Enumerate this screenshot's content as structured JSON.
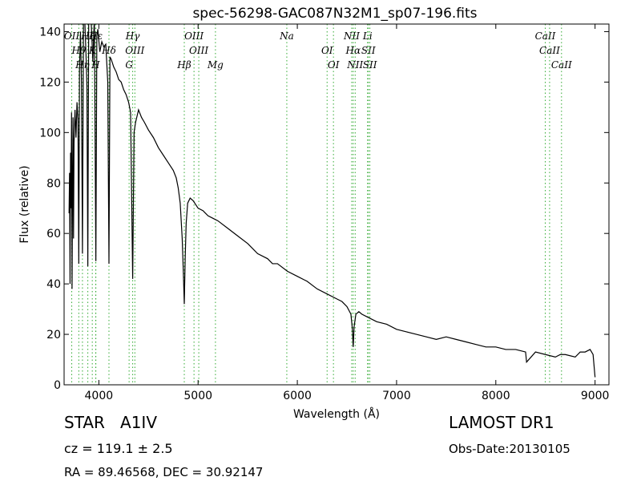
{
  "chart_data": {
    "type": "line",
    "title": "spec-56298-GAC087N32M1_sp07-196.fits",
    "x_label": "Wavelength (Å)",
    "y_label": "Flux (relative)",
    "xlim": [
      3650,
      9140
    ],
    "ylim": [
      0,
      143
    ],
    "xticks": [
      4000,
      5000,
      6000,
      7000,
      8000,
      9000
    ],
    "yticks": [
      0,
      20,
      40,
      60,
      80,
      100,
      120,
      140
    ],
    "line_color": "#000000",
    "marker_color": "#33aa33",
    "x": [
      3700,
      3705,
      3710,
      3715,
      3720,
      3725,
      3730,
      3735,
      3740,
      3745,
      3750,
      3760,
      3770,
      3780,
      3790,
      3798,
      3805,
      3815,
      3825,
      3835,
      3845,
      3855,
      3870,
      3880,
      3889,
      3898,
      3910,
      3925,
      3940,
      3955,
      3970,
      3980,
      3990,
      4010,
      4030,
      4050,
      4070,
      4090,
      4102,
      4112,
      4125,
      4150,
      4175,
      4200,
      4225,
      4250,
      4275,
      4300,
      4320,
      4341,
      4355,
      4370,
      4400,
      4430,
      4460,
      4500,
      4550,
      4600,
      4650,
      4700,
      4750,
      4780,
      4800,
      4820,
      4840,
      4852,
      4861,
      4870,
      4880,
      4895,
      4920,
      4950,
      5000,
      5050,
      5100,
      5150,
      5200,
      5300,
      5400,
      5500,
      5600,
      5700,
      5750,
      5800,
      5900,
      6000,
      6100,
      6200,
      6300,
      6400,
      6450,
      6500,
      6540,
      6555,
      6563,
      6572,
      6590,
      6620,
      6650,
      6700,
      6800,
      6900,
      7000,
      7100,
      7200,
      7300,
      7400,
      7500,
      7600,
      7700,
      7800,
      7900,
      8000,
      8100,
      8200,
      8300,
      8310,
      8400,
      8500,
      8600,
      8650,
      8700,
      8800,
      8850,
      8900,
      8950,
      8980,
      9000
    ],
    "values": [
      68,
      84,
      40,
      92,
      70,
      108,
      38,
      80,
      106,
      58,
      96,
      109,
      98,
      112,
      105,
      48,
      125,
      140,
      120,
      52,
      143,
      148,
      132,
      118,
      47,
      146,
      150,
      142,
      128,
      146,
      49,
      138,
      141,
      132,
      136,
      134,
      135,
      120,
      48,
      130,
      129,
      126,
      124,
      121,
      120,
      117,
      115,
      112,
      108,
      42,
      100,
      104,
      109,
      106,
      104,
      101,
      98,
      94,
      91,
      88,
      85,
      82,
      78,
      72,
      58,
      44,
      32,
      50,
      64,
      72,
      74,
      73,
      70,
      69,
      67,
      66,
      65,
      62,
      59,
      56,
      52,
      50,
      48,
      48,
      45,
      43,
      41,
      38,
      36,
      34,
      33,
      31,
      28,
      22,
      15,
      23,
      28,
      29,
      28,
      27,
      25,
      24,
      22,
      21,
      20,
      19,
      18,
      19,
      18,
      17,
      16,
      15,
      15,
      14,
      14,
      13,
      9,
      13,
      12,
      11,
      12,
      12,
      11,
      13,
      13,
      14,
      12,
      3
    ],
    "lines": [
      {
        "label": "OII",
        "wavelength": 3727
      },
      {
        "label": "Hθ",
        "wavelength": 3798
      },
      {
        "label": "Hη",
        "wavelength": 3835
      },
      {
        "label": "Hζ",
        "wavelength": 3889
      },
      {
        "label": "K",
        "wavelength": 3934
      },
      {
        "label": "H",
        "wavelength": 3968
      },
      {
        "label": "Hε",
        "wavelength": 3970
      },
      {
        "label": "Hδ",
        "wavelength": 4102
      },
      {
        "label": "G",
        "wavelength": 4305
      },
      {
        "label": "Hγ",
        "wavelength": 4341
      },
      {
        "label": "OIII",
        "wavelength": 4363
      },
      {
        "label": "Hβ",
        "wavelength": 4861
      },
      {
        "label": "OIII",
        "wavelength": 4959
      },
      {
        "label": "OIII",
        "wavelength": 5007
      },
      {
        "label": "Mg",
        "wavelength": 5175
      },
      {
        "label": "Na",
        "wavelength": 5894
      },
      {
        "label": "OI",
        "wavelength": 6300
      },
      {
        "label": "OI",
        "wavelength": 6364
      },
      {
        "label": "NII",
        "wavelength": 6548
      },
      {
        "label": "Hα",
        "wavelength": 6563
      },
      {
        "label": "NII",
        "wavelength": 6583
      },
      {
        "label": "Li",
        "wavelength": 6708
      },
      {
        "label": "SII",
        "wavelength": 6716
      },
      {
        "label": "SII",
        "wavelength": 6731
      },
      {
        "label": "CaII",
        "wavelength": 8498
      },
      {
        "label": "CaII",
        "wavelength": 8542
      },
      {
        "label": "CaII",
        "wavelength": 8662
      }
    ],
    "info": {
      "object_class": "STAR   A1IV",
      "redshift": "cz = 119.1 ± 2.5",
      "coordinates": "RA = 89.46568, DEC = 30.92147",
      "survey": "LAMOST DR1",
      "obs_date": "Obs-Date:20130105"
    }
  }
}
